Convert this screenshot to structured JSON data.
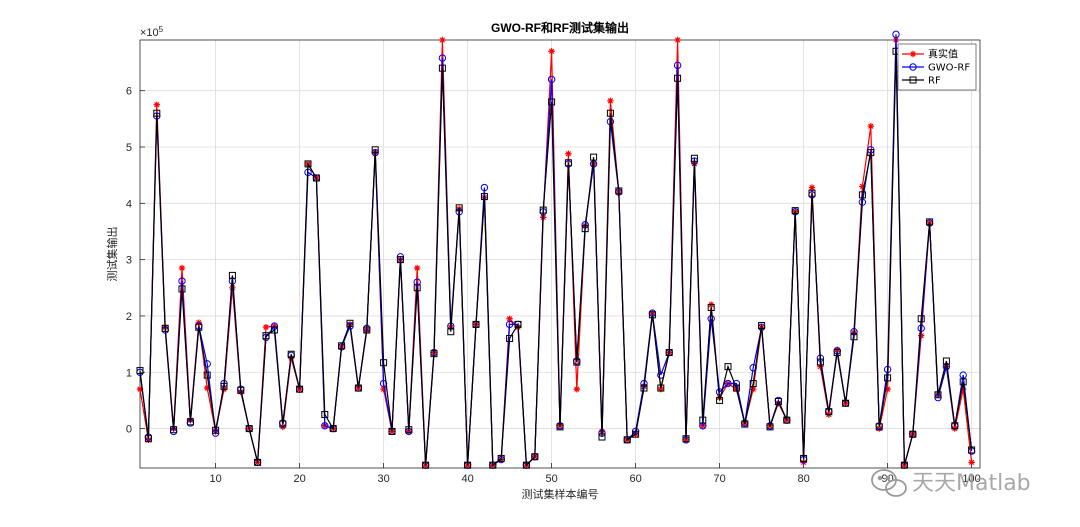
{
  "chart_data": {
    "type": "line",
    "title": "GWO-RF和RF测试集输出",
    "xlabel": "测试集样本编号",
    "ylabel": "测试集输出",
    "y_exponent_label": "×10",
    "y_exponent_power": "5",
    "xlim": [
      1,
      101
    ],
    "ylim": [
      -70000,
      690000
    ],
    "xticks": [
      10,
      20,
      30,
      40,
      50,
      60,
      70,
      80,
      90,
      100
    ],
    "yticks": [
      0,
      100000,
      200000,
      300000,
      400000,
      500000,
      600000
    ],
    "ytick_labels": [
      "0",
      "1",
      "2",
      "3",
      "4",
      "5",
      "6"
    ],
    "grid": true,
    "legend_position": "top-right",
    "series": [
      {
        "name": "真实值",
        "color": "#ff0000",
        "marker": "star",
        "values": [
          70000,
          -20000,
          575000,
          180000,
          0,
          285000,
          15000,
          188000,
          72000,
          -5000,
          70000,
          250000,
          65000,
          0,
          -60000,
          180000,
          182000,
          3000,
          125000,
          70000,
          470000,
          445000,
          5000,
          0,
          145000,
          185000,
          72000,
          175000,
          490000,
          70000,
          -5000,
          300000,
          -5000,
          285000,
          -65000,
          135000,
          690000,
          180000,
          390000,
          -65000,
          185000,
          410000,
          -65000,
          -55000,
          195000,
          180000,
          -65000,
          -50000,
          375000,
          670000,
          5000,
          488000,
          70000,
          360000,
          470000,
          -5000,
          582000,
          420000,
          -20000,
          -10000,
          75000,
          205000,
          70000,
          135000,
          690000,
          -20000,
          470000,
          5000,
          220000,
          55000,
          80000,
          70000,
          10000,
          70000,
          180000,
          5000,
          45000,
          15000,
          385000,
          -60000,
          428000,
          110000,
          25000,
          140000,
          45000,
          170000,
          430000,
          537000,
          0,
          70000,
          690000,
          -65000,
          -10000,
          165000,
          365000,
          60000,
          110000,
          0,
          70000,
          -60000
        ]
      },
      {
        "name": "GWO-RF",
        "color": "#0000ff",
        "marker": "circle",
        "values": [
          100000,
          -15000,
          555000,
          175000,
          -5000,
          262000,
          10000,
          182000,
          115000,
          -8000,
          80000,
          262000,
          70000,
          0,
          -60000,
          162000,
          182000,
          10000,
          130000,
          70000,
          455000,
          445000,
          5000,
          0,
          145000,
          182000,
          72000,
          178000,
          490000,
          80000,
          -5000,
          305000,
          -5000,
          260000,
          -65000,
          135000,
          658000,
          182000,
          385000,
          -65000,
          185000,
          428000,
          -65000,
          -55000,
          185000,
          185000,
          -65000,
          -50000,
          385000,
          620000,
          5000,
          470000,
          120000,
          362000,
          470000,
          -8000,
          545000,
          420000,
          -20000,
          -5000,
          80000,
          205000,
          95000,
          135000,
          645000,
          -20000,
          475000,
          5000,
          195000,
          65000,
          80000,
          80000,
          10000,
          108000,
          180000,
          5000,
          50000,
          15000,
          385000,
          -55000,
          415000,
          125000,
          30000,
          138000,
          45000,
          172000,
          402000,
          495000,
          5000,
          105000,
          700000,
          -65000,
          -10000,
          178000,
          365000,
          55000,
          110000,
          5000,
          95000,
          -40000
        ]
      },
      {
        "name": "RF",
        "color": "#000000",
        "marker": "square",
        "values": [
          103000,
          -18000,
          560000,
          178000,
          -2000,
          248000,
          12000,
          180000,
          95000,
          -3000,
          75000,
          272000,
          68000,
          0,
          -60000,
          165000,
          175000,
          8000,
          132000,
          70000,
          470000,
          445000,
          25000,
          0,
          147000,
          187000,
          72000,
          175000,
          495000,
          117000,
          -5000,
          300000,
          -2000,
          250000,
          -65000,
          133000,
          640000,
          172000,
          392000,
          -65000,
          185000,
          412000,
          -65000,
          -53000,
          160000,
          185000,
          -65000,
          -50000,
          388000,
          580000,
          3000,
          472000,
          118000,
          355000,
          482000,
          -15000,
          560000,
          422000,
          -20000,
          -10000,
          72000,
          202000,
          72000,
          135000,
          622000,
          -18000,
          480000,
          15000,
          215000,
          50000,
          110000,
          72000,
          8000,
          80000,
          183000,
          3000,
          48000,
          15000,
          387000,
          -53000,
          418000,
          118000,
          30000,
          135000,
          45000,
          163000,
          415000,
          490000,
          3000,
          90000,
          670000,
          -65000,
          -10000,
          195000,
          367000,
          60000,
          120000,
          5000,
          83000,
          -38000
        ]
      }
    ]
  },
  "watermark": {
    "text": "天天Matlab",
    "icon": "wechat-icon"
  }
}
